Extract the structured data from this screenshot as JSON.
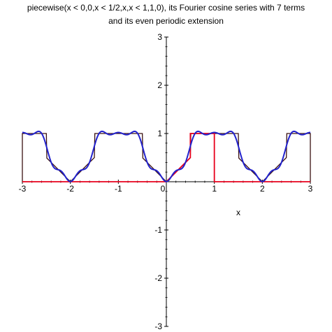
{
  "chart_data": {
    "type": "line",
    "title_line1": "piecewise(x < 0,0,x < 1/2,x,x < 1,1,0), its Fourier cosine series with 7 terms",
    "title_line2": "and its even periodic extension",
    "xlabel": "x",
    "ylabel": "",
    "xlim": [
      -3,
      3
    ],
    "ylim": [
      -3,
      3
    ],
    "x_ticks": [
      -3,
      -2,
      -1,
      0,
      1,
      2,
      3
    ],
    "y_ticks": [
      -3,
      -2,
      -1,
      1,
      2,
      3
    ],
    "series": [
      {
        "color": "#e8001c",
        "description_points": [
          [
            -3,
            0
          ],
          [
            0,
            0
          ],
          [
            0.5,
            0.5
          ],
          [
            0.5,
            1
          ],
          [
            1,
            1
          ],
          [
            1,
            0
          ],
          [
            3,
            0
          ]
        ]
      },
      {
        "color": "#2222cc",
        "kind": "fourier-cosine-7-terms"
      },
      {
        "color": "#3a1010",
        "kind": "even-periodic-extension",
        "period": 2
      }
    ]
  }
}
